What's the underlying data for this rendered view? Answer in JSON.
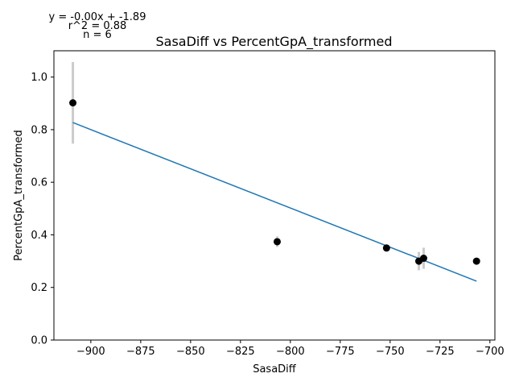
{
  "chart_data": {
    "type": "scatter",
    "title": "SasaDiff vs PercentGpA_transformed",
    "xlabel": "SasaDiff",
    "ylabel": "PercentGpA_transformed",
    "xlim": [
      -918.5,
      -697.5
    ],
    "ylim": [
      0.0,
      1.1
    ],
    "xticks": [
      -900,
      -875,
      -850,
      -825,
      -800,
      -775,
      -750,
      -725,
      -700
    ],
    "yticks": [
      0.0,
      0.2,
      0.4,
      0.6,
      0.8,
      1.0
    ],
    "xtick_labels": [
      "−900",
      "−875",
      "−850",
      "−825",
      "−800",
      "−775",
      "−750",
      "−725",
      "−700"
    ],
    "ytick_labels": [
      "0.0",
      "0.2",
      "0.4",
      "0.6",
      "0.8",
      "1.0"
    ],
    "grid": false,
    "points": [
      {
        "x": -909.0,
        "y": 0.902,
        "err": 0.155
      },
      {
        "x": -806.6,
        "y": 0.374,
        "err": 0.02
      },
      {
        "x": -751.8,
        "y": 0.35,
        "err": 0.01
      },
      {
        "x": -735.6,
        "y": 0.3,
        "err": 0.035
      },
      {
        "x": -733.2,
        "y": 0.311,
        "err": 0.04
      },
      {
        "x": -706.7,
        "y": 0.3,
        "err": 0.008
      }
    ],
    "fit_line": {
      "x": [
        -909.0,
        -706.7
      ],
      "y": [
        0.827,
        0.224
      ]
    },
    "annotations": {
      "equation": "y = -0.00x + -1.89",
      "r_squared": "r^2 = 0.88",
      "n": "n = 6"
    },
    "colors": {
      "points": "#000000",
      "errorbars": "#cccccc",
      "fit_line": "#1f77b4",
      "axes": "#000000"
    }
  }
}
